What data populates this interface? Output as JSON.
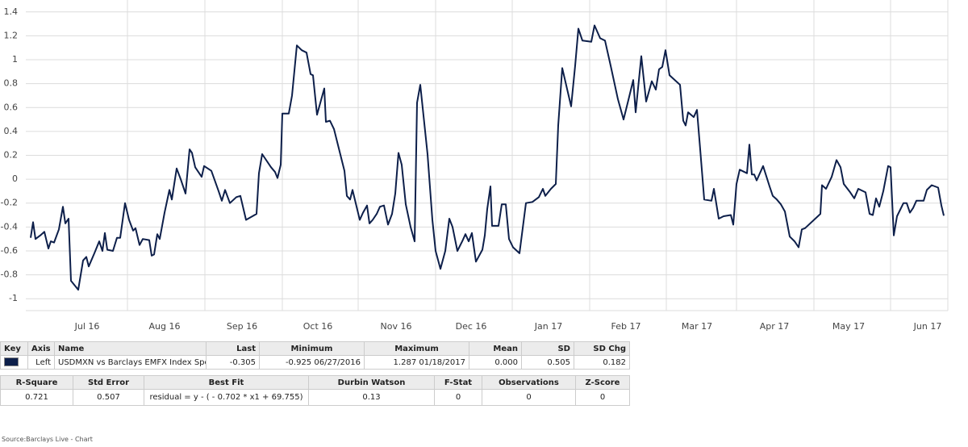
{
  "chart_data": {
    "type": "line",
    "ylim": [
      -1.1,
      1.5
    ],
    "yticks": [
      -1,
      -0.8,
      -0.6,
      -0.4,
      -0.2,
      0,
      0.2,
      0.4,
      0.6,
      0.8,
      1,
      1.2,
      1.4
    ],
    "xlim": [
      0,
      1143
    ],
    "xticks": [
      {
        "value": 76,
        "label": "Jul 16"
      },
      {
        "value": 172,
        "label": "Aug 16"
      },
      {
        "value": 268,
        "label": "Sep 16"
      },
      {
        "value": 362,
        "label": "Oct 16"
      },
      {
        "value": 459,
        "label": "Nov 16"
      },
      {
        "value": 552,
        "label": "Dec 16"
      },
      {
        "value": 648,
        "label": "Jan 17"
      },
      {
        "value": 744,
        "label": "Feb 17"
      },
      {
        "value": 832,
        "label": "Mar 17"
      },
      {
        "value": 928,
        "label": "Apr 17"
      },
      {
        "value": 1020,
        "label": "May 17"
      },
      {
        "value": 1118,
        "label": "Jun 17"
      }
    ],
    "xgrid": [
      126,
      222,
      318,
      412,
      508,
      603,
      699,
      794,
      881,
      977,
      1072
    ],
    "grid": true,
    "series": [
      {
        "name": "USDMXN vs Barclays EMFX Index Spot",
        "color": "#0d1f4a",
        "x": [
          6,
          9,
          12,
          18,
          23,
          28,
          31,
          35,
          41,
          46,
          49,
          53,
          56,
          65,
          71,
          75,
          78,
          85,
          91,
          95,
          98,
          101,
          108,
          113,
          117,
          123,
          128,
          133,
          136,
          141,
          145,
          153,
          156,
          159,
          163,
          166,
          172,
          178,
          181,
          187,
          192,
          198,
          203,
          206,
          210,
          218,
          221,
          230,
          239,
          243,
          247,
          253,
          261,
          266,
          273,
          286,
          289,
          293,
          304,
          309,
          312,
          316,
          318,
          326,
          330,
          336,
          342,
          348,
          353,
          356,
          361,
          370,
          372,
          377,
          382,
          395,
          398,
          402,
          405,
          414,
          418,
          423,
          426,
          430,
          435,
          439,
          444,
          449,
          454,
          458,
          462,
          466,
          471,
          477,
          482,
          485,
          489,
          498,
          504,
          508,
          514,
          520,
          525,
          529,
          535,
          541,
          545,
          549,
          553,
          558,
          566,
          569,
          572,
          576,
          578,
          586,
          590,
          595,
          599,
          604,
          612,
          620,
          628,
          636,
          641,
          644,
          651,
          657,
          660,
          665,
          676,
          681,
          685,
          690,
          701,
          705,
          712,
          718,
          725,
          734,
          741,
          748,
          753,
          756,
          763,
          769,
          776,
          781,
          785,
          789,
          793,
          798,
          811,
          815,
          818,
          821,
          828,
          832,
          836,
          841,
          850,
          853,
          859,
          865,
          874,
          877,
          881,
          885,
          894,
          897,
          900,
          903,
          906,
          914,
          922,
          926,
          931,
          936,
          941,
          947,
          953,
          958,
          962,
          966,
          985,
          987,
          992,
          999,
          1005,
          1010,
          1014,
          1022,
          1027,
          1032,
          1041,
          1046,
          1050,
          1054,
          1058,
          1063,
          1069,
          1072,
          1076,
          1080,
          1088,
          1092,
          1096,
          1100,
          1104,
          1113,
          1117,
          1123,
          1131,
          1135,
          1138
        ],
        "values": [
          -0.49,
          -0.36,
          -0.5,
          -0.47,
          -0.44,
          -0.58,
          -0.52,
          -0.53,
          -0.42,
          -0.23,
          -0.37,
          -0.33,
          -0.85,
          -0.925,
          -0.68,
          -0.65,
          -0.73,
          -0.62,
          -0.52,
          -0.6,
          -0.45,
          -0.59,
          -0.6,
          -0.49,
          -0.49,
          -0.2,
          -0.34,
          -0.43,
          -0.41,
          -0.55,
          -0.5,
          -0.51,
          -0.64,
          -0.63,
          -0.46,
          -0.5,
          -0.28,
          -0.09,
          -0.17,
          0.09,
          0,
          -0.12,
          0.25,
          0.22,
          0.1,
          0.02,
          0.11,
          0.07,
          -0.1,
          -0.18,
          -0.09,
          -0.2,
          -0.15,
          -0.14,
          -0.34,
          -0.29,
          0.05,
          0.21,
          0.1,
          0.06,
          0.01,
          0.12,
          0.55,
          0.55,
          0.7,
          1.12,
          1.08,
          1.06,
          0.88,
          0.87,
          0.54,
          0.76,
          0.48,
          0.49,
          0.42,
          0.07,
          -0.14,
          -0.17,
          -0.09,
          -0.34,
          -0.28,
          -0.22,
          -0.37,
          -0.34,
          -0.29,
          -0.23,
          -0.22,
          -0.38,
          -0.29,
          -0.12,
          0.22,
          0.12,
          -0.21,
          -0.4,
          -0.52,
          0.64,
          0.79,
          0.21,
          -0.34,
          -0.6,
          -0.75,
          -0.6,
          -0.33,
          -0.4,
          -0.6,
          -0.52,
          -0.46,
          -0.52,
          -0.45,
          -0.69,
          -0.59,
          -0.47,
          -0.25,
          -0.06,
          -0.39,
          -0.39,
          -0.21,
          -0.21,
          -0.5,
          -0.57,
          -0.62,
          -0.2,
          -0.19,
          -0.15,
          -0.08,
          -0.14,
          -0.08,
          -0.04,
          0.45,
          0.93,
          0.61,
          0.95,
          1.26,
          1.16,
          1.15,
          1.287,
          1.18,
          1.16,
          0.95,
          0.67,
          0.5,
          0.69,
          0.83,
          0.56,
          1.03,
          0.65,
          0.82,
          0.75,
          0.92,
          0.94,
          1.08,
          0.87,
          0.79,
          0.49,
          0.45,
          0.56,
          0.52,
          0.58,
          0.25,
          -0.17,
          -0.18,
          -0.08,
          -0.33,
          -0.31,
          -0.3,
          -0.38,
          -0.04,
          0.08,
          0.05,
          0.29,
          0.04,
          0.04,
          -0.01,
          0.11,
          -0.06,
          -0.14,
          -0.17,
          -0.21,
          -0.27,
          -0.48,
          -0.52,
          -0.57,
          -0.42,
          -0.41,
          -0.29,
          -0.05,
          -0.08,
          0.02,
          0.16,
          0.1,
          -0.04,
          -0.11,
          -0.16,
          -0.08,
          -0.11,
          -0.29,
          -0.3,
          -0.16,
          -0.23,
          -0.1,
          0.11,
          0.1,
          -0.47,
          -0.31,
          -0.2,
          -0.2,
          -0.28,
          -0.24,
          -0.18,
          -0.18,
          -0.09,
          -0.05,
          -0.07,
          -0.22,
          -0.305
        ]
      }
    ]
  },
  "key_table": {
    "header": [
      "Key",
      "Axis",
      "Name",
      "Last",
      "Minimum",
      "Maximum",
      "Mean",
      "SD",
      "SD Chg"
    ],
    "row": {
      "axis": "Left",
      "last": "-0.305",
      "minimum": "-0.925 06/27/2016",
      "maximum": "1.287 01/18/2017",
      "mean": "0.000",
      "sd": "0.505",
      "sd_chg": "0.182"
    }
  },
  "stats_table": {
    "header": [
      "R-Square",
      "Std Error",
      "Best Fit",
      "Durbin Watson",
      "F-Stat",
      "Observations",
      "Z-Score"
    ],
    "row": [
      "0.721",
      "0.507",
      "residual = y - ( - 0.702 * x1 + 69.755)",
      "0.13",
      "0",
      "0",
      "0"
    ]
  },
  "source": "Source:Barclays Live - Chart"
}
